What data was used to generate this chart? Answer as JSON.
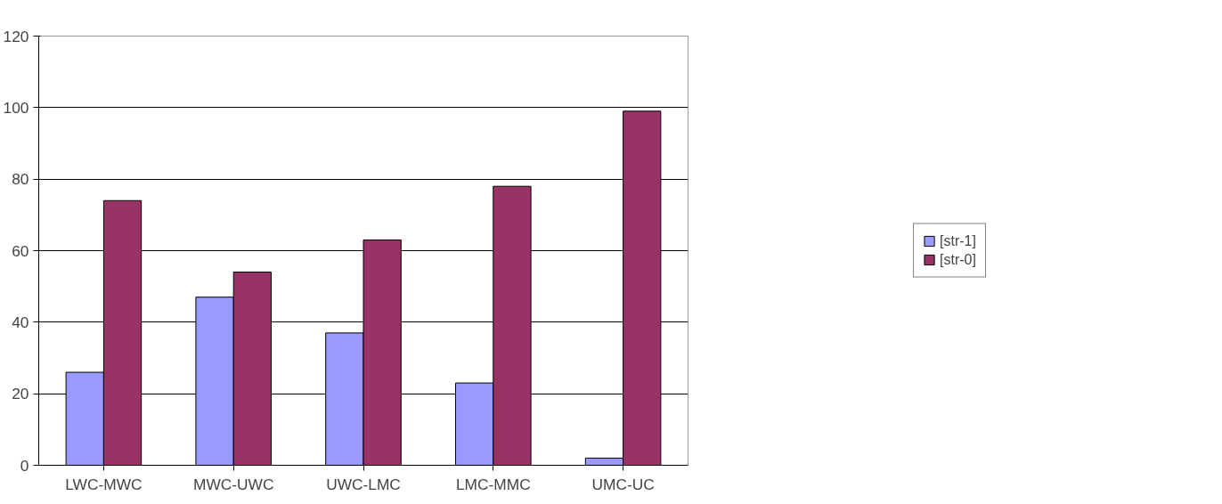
{
  "chart_data": {
    "type": "bar",
    "categories": [
      "LWC-MWC",
      "MWC-UWC",
      "UWC-LMC",
      "LMC-MMC",
      "UMC-UC"
    ],
    "series": [
      {
        "name": "[str-1]",
        "color": "#9999ff",
        "values": [
          26,
          47,
          37,
          23,
          2
        ]
      },
      {
        "name": "[str-0]",
        "color": "#993366",
        "values": [
          74,
          54,
          63,
          78,
          99
        ]
      }
    ],
    "ylim": [
      0,
      120
    ],
    "yticks": [
      0,
      20,
      40,
      60,
      80,
      100,
      120
    ],
    "grid": "y",
    "legend": "right"
  }
}
